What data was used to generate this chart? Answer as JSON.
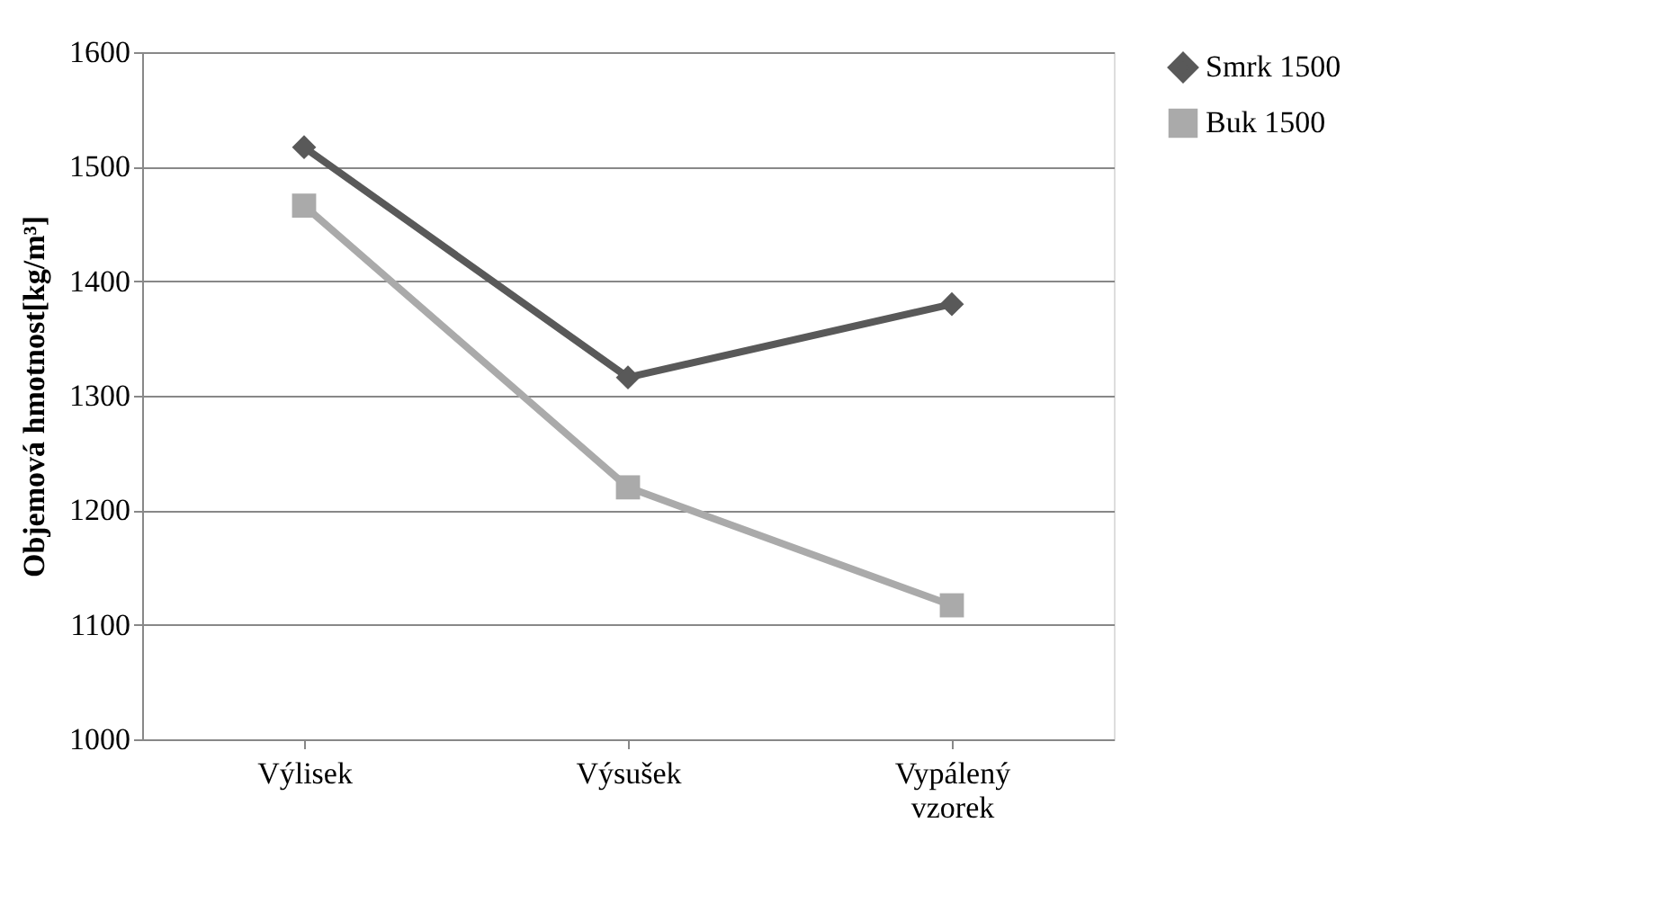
{
  "chart_data": {
    "type": "line",
    "ylabel": "Objemová hmotnost[kg/m³]",
    "categories": [
      "Výlisek",
      "Výsušek",
      "Vypálený vzorek"
    ],
    "series": [
      {
        "name": "Smrk 1500",
        "color": "#595959",
        "marker": "diamond",
        "values": [
          1517,
          1316,
          1380
        ]
      },
      {
        "name": "Buk 1500",
        "color": "#aaaaaa",
        "marker": "square",
        "values": [
          1466,
          1220,
          1117
        ]
      }
    ],
    "ylim": [
      1000,
      1600
    ],
    "yticks": [
      1000,
      1100,
      1200,
      1300,
      1400,
      1500,
      1600
    ],
    "grid": "y",
    "legend": "right",
    "line_style": "solid"
  }
}
